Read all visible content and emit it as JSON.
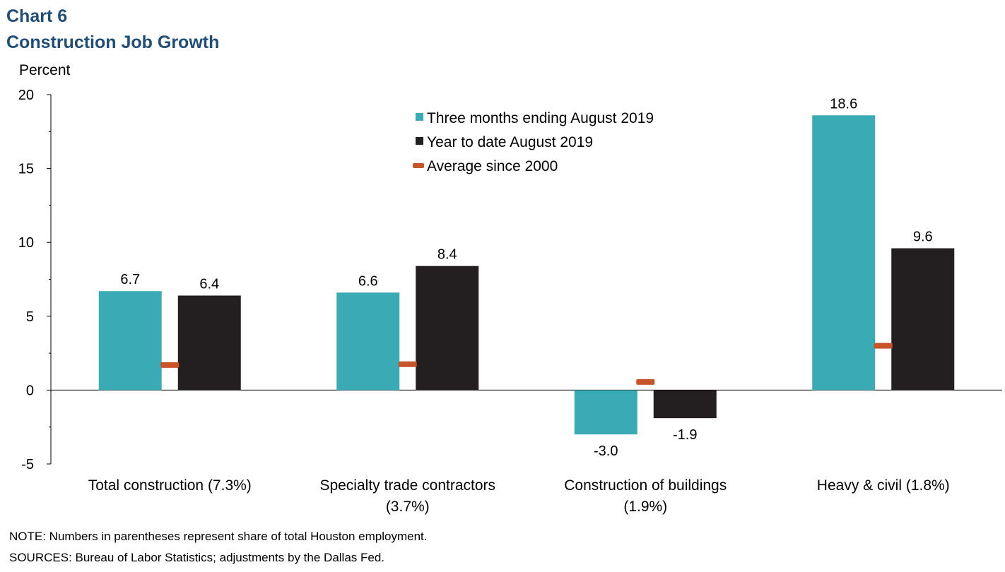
{
  "header": {
    "chart_number": "Chart 6",
    "title": "Construction Job Growth"
  },
  "chart_data": {
    "type": "bar",
    "ylabel": "Percent",
    "ylim": [
      -5,
      20
    ],
    "yticks": [
      "20",
      "15",
      "10",
      "5",
      "0",
      "-5"
    ],
    "categories": [
      [
        "Total construction (7.3%)"
      ],
      [
        "Specialty trade contractors",
        "(3.7%)"
      ],
      [
        "Construction of buildings",
        "(1.9%)"
      ],
      [
        "Heavy & civil (1.8%)"
      ]
    ],
    "series": [
      {
        "name": "Three months ending August 2019",
        "values": [
          6.7,
          6.6,
          -3.0,
          18.6
        ],
        "labels": [
          "6.7",
          "6.6",
          "-3.0",
          "18.6"
        ],
        "color": "#3aabb5"
      },
      {
        "name": "Year to date August 2019",
        "values": [
          6.4,
          8.4,
          -1.9,
          9.6
        ],
        "labels": [
          "6.4",
          "8.4",
          "-1.9",
          "9.6"
        ],
        "color": "#231f20"
      }
    ],
    "markers": {
      "name": "Average since 2000",
      "values": [
        1.7,
        1.75,
        0.55,
        3.0
      ],
      "color": "#c8542a"
    },
    "legend_position": "top-center",
    "grid": false
  },
  "footer": {
    "note": "NOTE: Numbers in parentheses represent share of total Houston employment.",
    "sources": "SOURCES: Bureau of Labor Statistics; adjustments by the Dallas Fed."
  }
}
